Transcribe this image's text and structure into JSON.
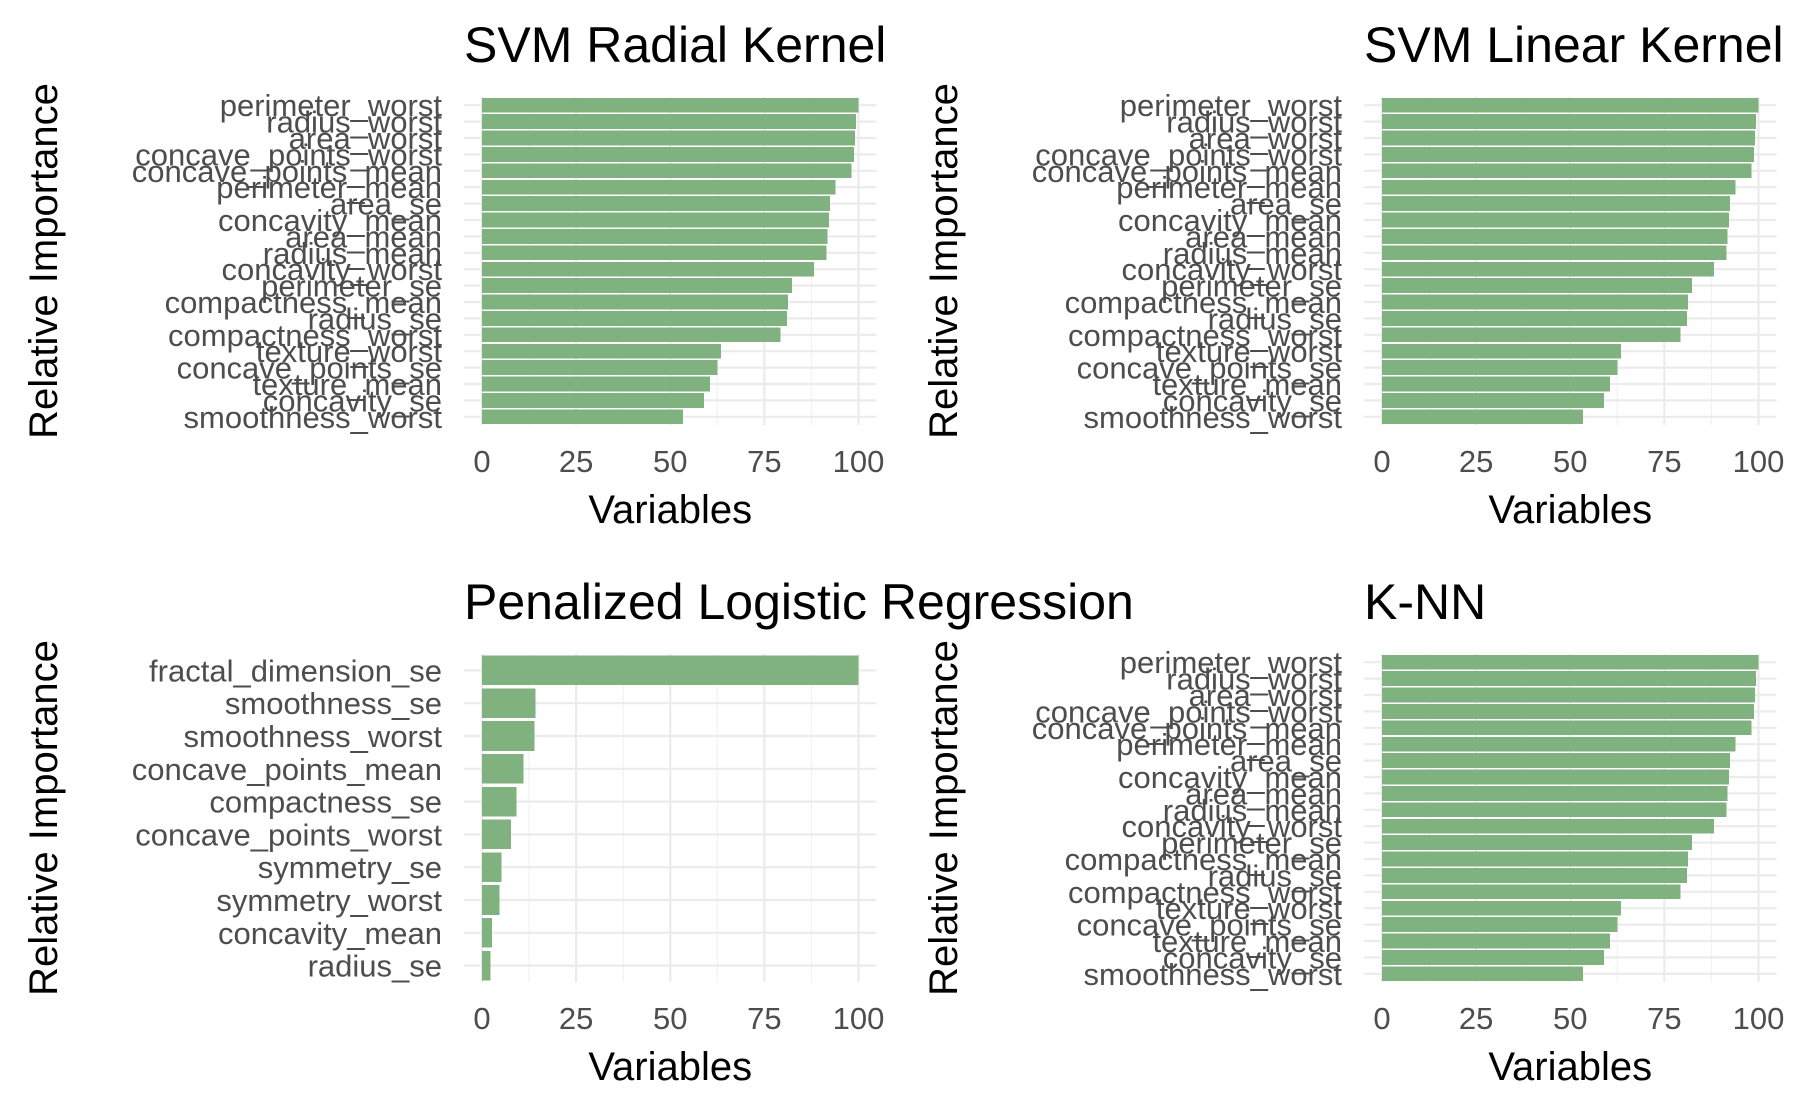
{
  "colors": {
    "bar": "#80b27f",
    "background": "#ffffff",
    "grid": "#ebebeb",
    "tick_text": "#4d4d4d"
  },
  "chart_data": [
    {
      "type": "bar",
      "orientation": "horizontal",
      "title": "SVM Radial Kernel",
      "xlabel": "Variables",
      "ylabel": "Relative Importance",
      "xlim": [
        0,
        100
      ],
      "xticks": [
        0,
        25,
        50,
        75,
        100
      ],
      "grid": true,
      "categories": [
        "perimeter_worst",
        "radius_worst",
        "area_worst",
        "concave_points_worst",
        "concave_points_mean",
        "perimeter_mean",
        "area_se",
        "concavity_mean",
        "area_mean",
        "radius_mean",
        "concavity_worst",
        "perimeter_se",
        "compactness_mean",
        "radius_se",
        "compactness_worst",
        "texture_worst",
        "concave_points_se",
        "texture_mean",
        "concavity_se",
        "smoothness_worst"
      ],
      "values": [
        100,
        99.3,
        99.1,
        98.8,
        98.2,
        93.9,
        92.4,
        92.1,
        91.8,
        91.5,
        88.2,
        82.3,
        81.3,
        81.0,
        79.3,
        63.5,
        62.5,
        60.6,
        59.0,
        53.4
      ]
    },
    {
      "type": "bar",
      "orientation": "horizontal",
      "title": "SVM Linear Kernel",
      "xlabel": "Variables",
      "ylabel": "Relative Importance",
      "xlim": [
        0,
        100
      ],
      "xticks": [
        0,
        25,
        50,
        75,
        100
      ],
      "grid": true,
      "categories": [
        "perimeter_worst",
        "radius_worst",
        "area_worst",
        "concave_points_worst",
        "concave_points_mean",
        "perimeter_mean",
        "area_se",
        "concavity_mean",
        "area_mean",
        "radius_mean",
        "concavity_worst",
        "perimeter_se",
        "compactness_mean",
        "radius_se",
        "compactness_worst",
        "texture_worst",
        "concave_points_se",
        "texture_mean",
        "concavity_se",
        "smoothness_worst"
      ],
      "values": [
        100,
        99.3,
        99.1,
        98.8,
        98.2,
        93.9,
        92.4,
        92.1,
        91.8,
        91.5,
        88.2,
        82.3,
        81.3,
        81.0,
        79.3,
        63.5,
        62.5,
        60.6,
        59.0,
        53.4
      ]
    },
    {
      "type": "bar",
      "orientation": "horizontal",
      "title": "Penalized Logistic Regression",
      "xlabel": "Variables",
      "ylabel": "Relative Importance",
      "xlim": [
        0,
        100
      ],
      "xticks": [
        0,
        25,
        50,
        75,
        100
      ],
      "grid": true,
      "categories": [
        "fractal_dimension_se",
        "smoothness_se",
        "smoothness_worst",
        "concave_points_mean",
        "compactness_se",
        "concave_points_worst",
        "symmetry_se",
        "symmetry_worst",
        "concavity_mean",
        "radius_se"
      ],
      "values": [
        100,
        14.2,
        14.0,
        11.0,
        9.2,
        7.7,
        5.2,
        4.7,
        2.7,
        2.3
      ]
    },
    {
      "type": "bar",
      "orientation": "horizontal",
      "title": "K-NN",
      "xlabel": "Variables",
      "ylabel": "Relative Importance",
      "xlim": [
        0,
        100
      ],
      "xticks": [
        0,
        25,
        50,
        75,
        100
      ],
      "grid": true,
      "categories": [
        "perimeter_worst",
        "radius_worst",
        "area_worst",
        "concave_points_worst",
        "concave_points_mean",
        "perimeter_mean",
        "area_se",
        "concavity_mean",
        "area_mean",
        "radius_mean",
        "concavity_worst",
        "perimeter_se",
        "compactness_mean",
        "radius_se",
        "compactness_worst",
        "texture_worst",
        "concave_points_se",
        "texture_mean",
        "concavity_se",
        "smoothness_worst"
      ],
      "values": [
        100,
        99.3,
        99.1,
        98.8,
        98.2,
        93.9,
        92.4,
        92.1,
        91.8,
        91.5,
        88.2,
        82.3,
        81.3,
        81.0,
        79.3,
        63.5,
        62.5,
        60.6,
        59.0,
        53.4
      ]
    }
  ]
}
